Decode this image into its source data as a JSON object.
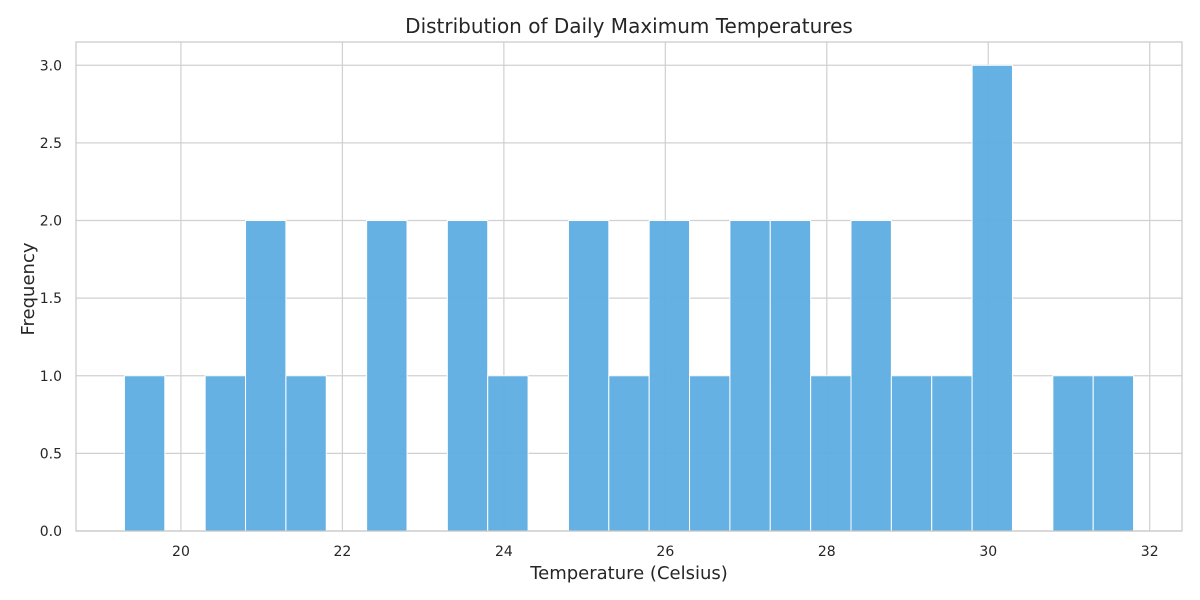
{
  "chart_data": {
    "type": "bar",
    "title": "Distribution of Daily Maximum Temperatures",
    "xlabel": "Temperature (Celsius)",
    "ylabel": "Frequency",
    "bar_color": "#5DADE2",
    "grid": true,
    "xlim": [
      18.7,
      32.4
    ],
    "ylim": [
      0,
      3.15
    ],
    "xticks": [
      20,
      22,
      24,
      26,
      28,
      30,
      32
    ],
    "yticks": [
      0.0,
      0.5,
      1.0,
      1.5,
      2.0,
      2.5,
      3.0
    ],
    "bin_width": 0.5,
    "bins": [
      {
        "start": 19.3,
        "count": 1
      },
      {
        "start": 19.8,
        "count": 0
      },
      {
        "start": 20.3,
        "count": 1
      },
      {
        "start": 20.8,
        "count": 2
      },
      {
        "start": 21.3,
        "count": 1
      },
      {
        "start": 21.8,
        "count": 0
      },
      {
        "start": 22.3,
        "count": 2
      },
      {
        "start": 22.8,
        "count": 0
      },
      {
        "start": 23.3,
        "count": 2
      },
      {
        "start": 23.8,
        "count": 1
      },
      {
        "start": 24.3,
        "count": 0
      },
      {
        "start": 24.8,
        "count": 2
      },
      {
        "start": 25.3,
        "count": 1
      },
      {
        "start": 25.8,
        "count": 2
      },
      {
        "start": 26.3,
        "count": 1
      },
      {
        "start": 26.8,
        "count": 2
      },
      {
        "start": 27.3,
        "count": 2
      },
      {
        "start": 27.8,
        "count": 1
      },
      {
        "start": 28.3,
        "count": 2
      },
      {
        "start": 28.8,
        "count": 1
      },
      {
        "start": 29.3,
        "count": 1
      },
      {
        "start": 29.8,
        "count": 3
      },
      {
        "start": 30.3,
        "count": 0
      },
      {
        "start": 30.8,
        "count": 1
      },
      {
        "start": 31.3,
        "count": 1
      }
    ]
  }
}
